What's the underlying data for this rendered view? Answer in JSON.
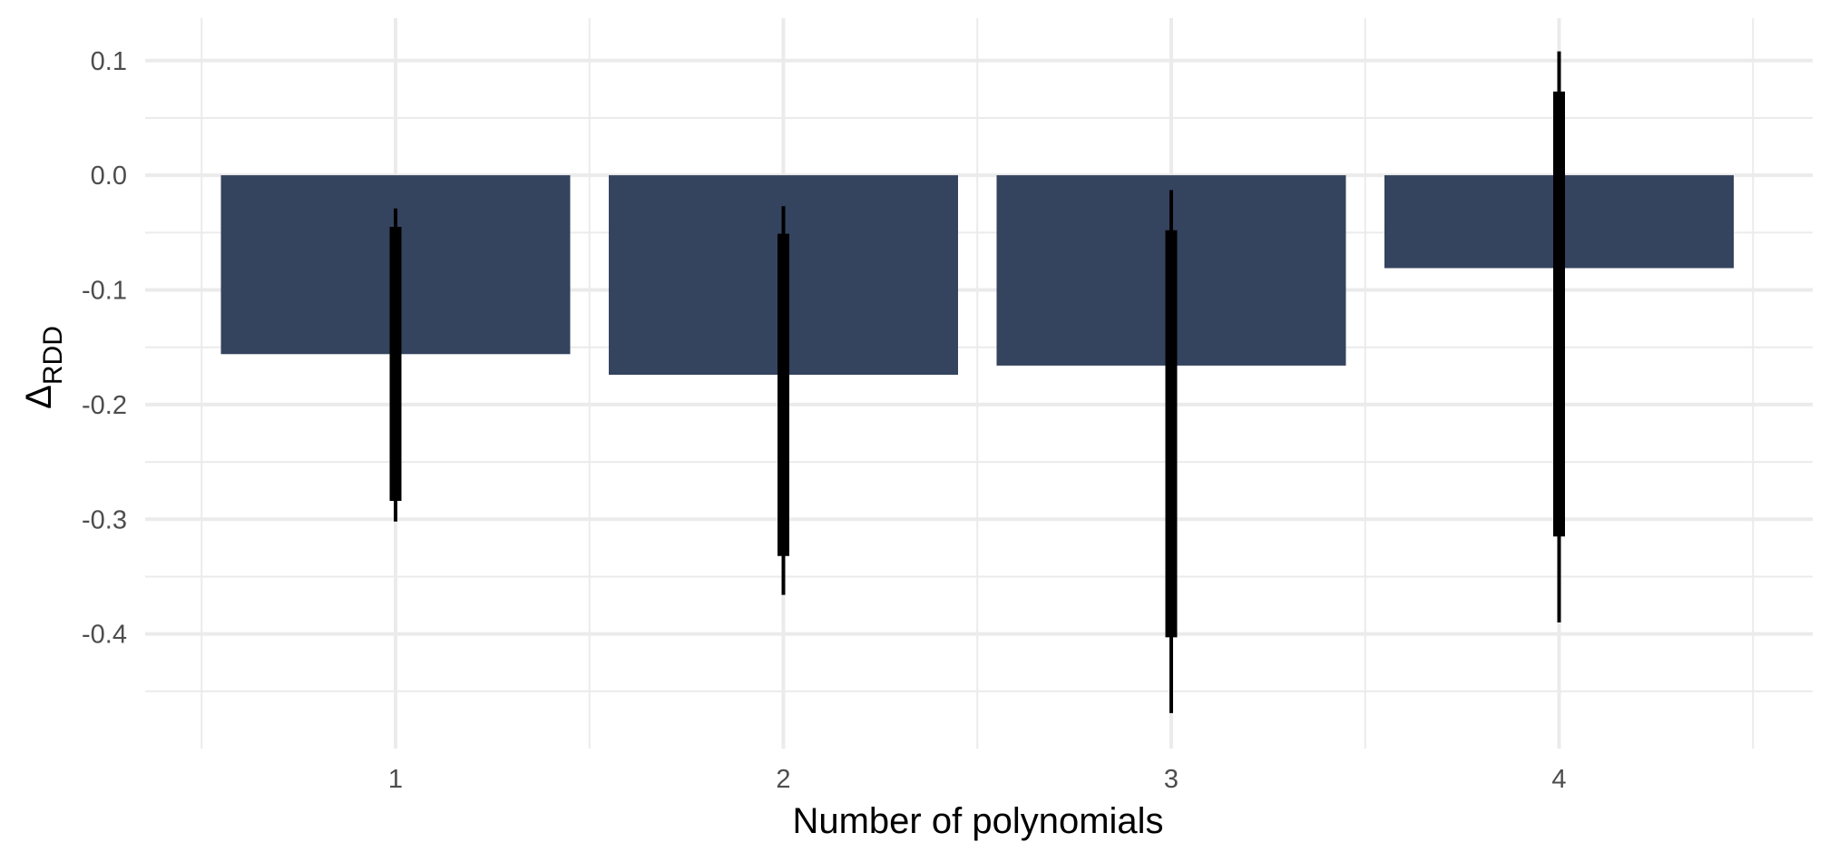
{
  "chart_data": {
    "type": "bar",
    "categories": [
      "1",
      "2",
      "3",
      "4"
    ],
    "values": [
      -0.156,
      -0.174,
      -0.166,
      -0.081
    ],
    "error_bars": {
      "inner": [
        {
          "low": -0.284,
          "high": -0.045
        },
        {
          "low": -0.332,
          "high": -0.051
        },
        {
          "low": -0.403,
          "high": -0.048
        },
        {
          "low": -0.315,
          "high": 0.073
        }
      ],
      "outer": [
        {
          "low": -0.302,
          "high": -0.029
        },
        {
          "low": -0.366,
          "high": -0.027
        },
        {
          "low": -0.469,
          "high": -0.013
        },
        {
          "low": -0.39,
          "high": 0.108
        }
      ]
    },
    "xlabel": "Number of polynomials",
    "ylabel": {
      "main": "Δ",
      "subscript": "RDD"
    },
    "yticks": [
      "0.1",
      "0.0",
      "-0.1",
      "-0.2",
      "-0.3",
      "-0.4"
    ],
    "ytick_values": [
      0.1,
      0.0,
      -0.1,
      -0.2,
      -0.3,
      -0.4
    ],
    "ylim": [
      -0.5,
      0.137
    ],
    "grid": true,
    "legend": "none",
    "colors": {
      "bar": "#34435e",
      "error_bar": "#000000",
      "grid": "#ebebeb",
      "tick_text": "#4d4d4d"
    }
  }
}
